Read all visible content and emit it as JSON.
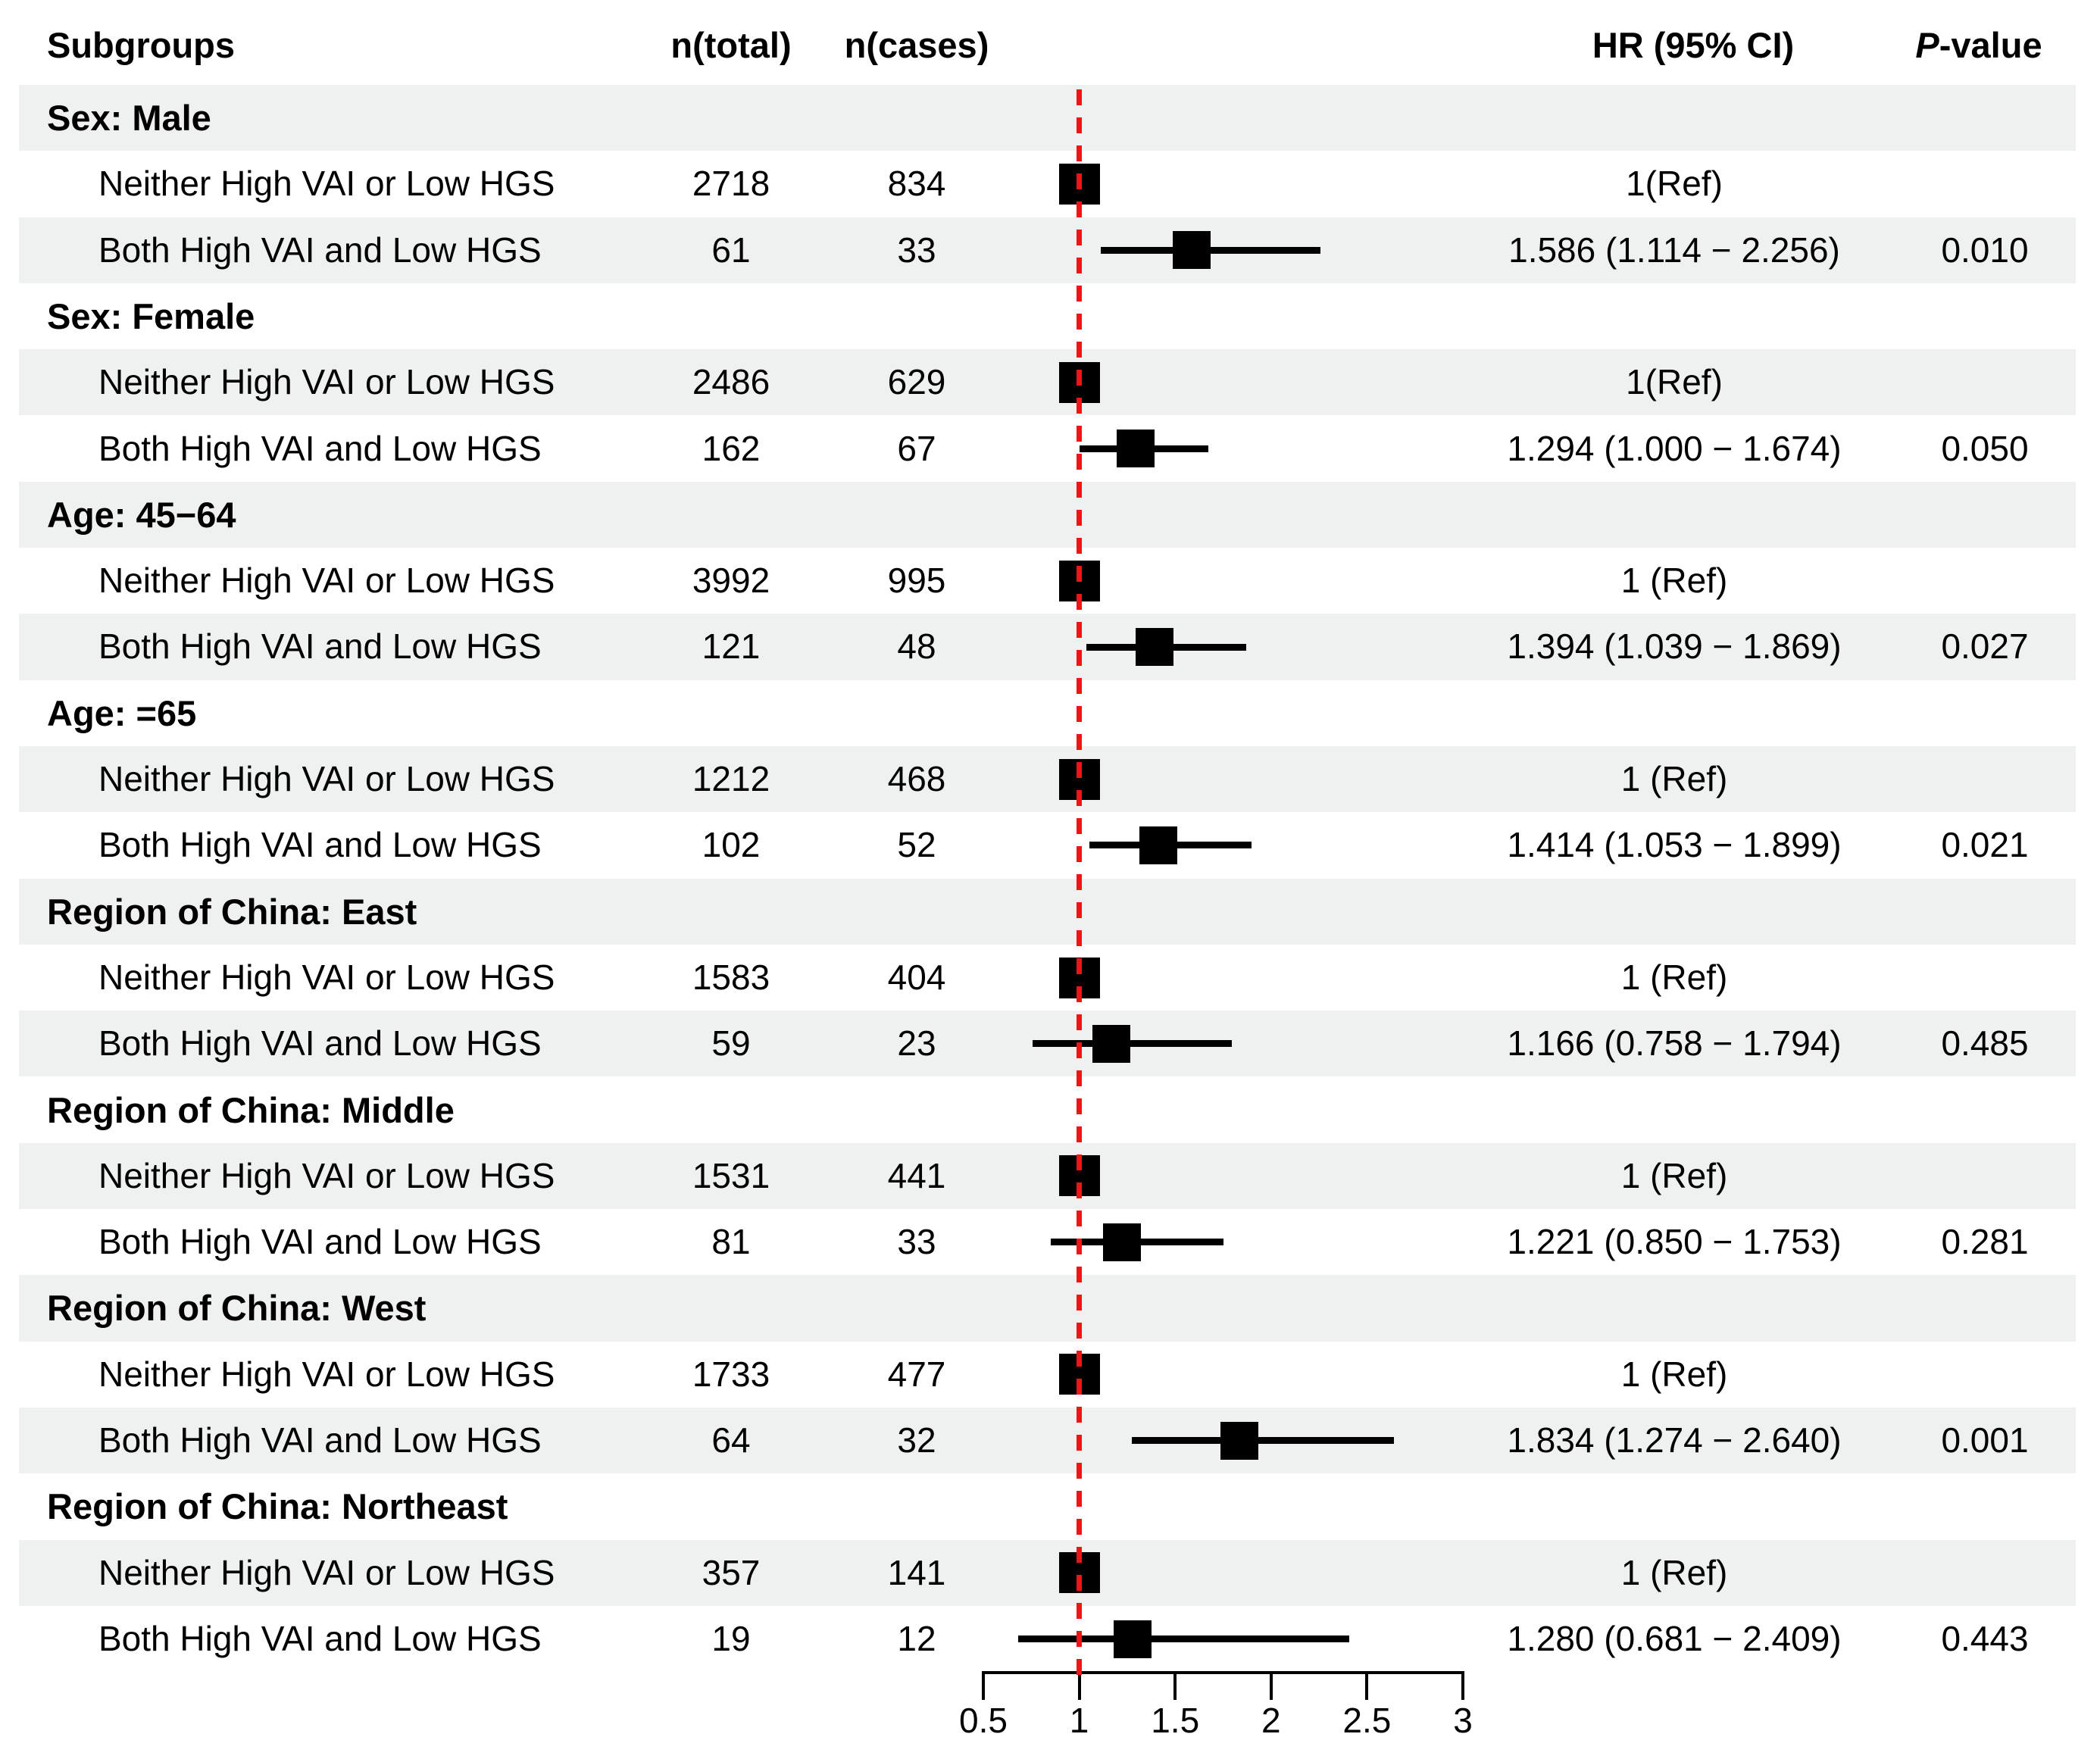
{
  "header": {
    "subgroups": "Subgroups",
    "n_total": "n(total)",
    "n_cases": "n(cases)",
    "hr_ci": "HR (95% CI)",
    "p_italic": "P",
    "p_rest": "-value"
  },
  "colors": {
    "band": "#eef1f0",
    "reference_line": "#f01414",
    "marker": "#000000",
    "text": "#000000"
  },
  "axis": {
    "min": 0.5,
    "max": 3,
    "ref_value": 1,
    "ticks": [
      "0.5",
      "1",
      "1.5",
      "2",
      "2.5",
      "3"
    ]
  },
  "rows": [
    {
      "type": "section",
      "label": "Sex: Male",
      "shaded": true
    },
    {
      "type": "data",
      "label": "Neither High VAI or Low HGS",
      "n_total": "2718",
      "n_cases": "834",
      "hr_text": "1(Ref)",
      "p": "",
      "est": 1,
      "ref": true,
      "shaded": false
    },
    {
      "type": "data",
      "label": "Both High VAI and Low HGS",
      "n_total": "61",
      "n_cases": "33",
      "hr_text": "1.586 (1.114 − 2.256)",
      "p": "0.010",
      "est": 1.586,
      "lo": 1.114,
      "hi": 2.256,
      "ref": false,
      "shaded": true
    },
    {
      "type": "section",
      "label": "Sex: Female",
      "shaded": false
    },
    {
      "type": "data",
      "label": "Neither High VAI or Low HGS",
      "n_total": "2486",
      "n_cases": "629",
      "hr_text": "1(Ref)",
      "p": "",
      "est": 1,
      "ref": true,
      "shaded": true
    },
    {
      "type": "data",
      "label": "Both High VAI and Low HGS",
      "n_total": "162",
      "n_cases": "67",
      "hr_text": "1.294 (1.000 − 1.674)",
      "p": "0.050",
      "est": 1.294,
      "lo": 1.0,
      "hi": 1.674,
      "ref": false,
      "shaded": false
    },
    {
      "type": "section",
      "label": "Age: 45−64",
      "shaded": true
    },
    {
      "type": "data",
      "label": "Neither High VAI or Low HGS",
      "n_total": "3992",
      "n_cases": "995",
      "hr_text": "1 (Ref)",
      "p": "",
      "est": 1,
      "ref": true,
      "shaded": false
    },
    {
      "type": "data",
      "label": "Both High VAI and Low HGS",
      "n_total": "121",
      "n_cases": "48",
      "hr_text": "1.394 (1.039 − 1.869)",
      "p": "0.027",
      "est": 1.394,
      "lo": 1.039,
      "hi": 1.869,
      "ref": false,
      "shaded": true
    },
    {
      "type": "section",
      "label": "Age: =65",
      "shaded": false
    },
    {
      "type": "data",
      "label": "Neither High VAI or Low HGS",
      "n_total": "1212",
      "n_cases": "468",
      "hr_text": "1 (Ref)",
      "p": "",
      "est": 1,
      "ref": true,
      "shaded": true
    },
    {
      "type": "data",
      "label": "Both High VAI and Low HGS",
      "n_total": "102",
      "n_cases": "52",
      "hr_text": "1.414 (1.053 − 1.899)",
      "p": "0.021",
      "est": 1.414,
      "lo": 1.053,
      "hi": 1.899,
      "ref": false,
      "shaded": false
    },
    {
      "type": "section",
      "label": "Region of China: East",
      "shaded": true
    },
    {
      "type": "data",
      "label": "Neither High VAI or Low HGS",
      "n_total": "1583",
      "n_cases": "404",
      "hr_text": "1 (Ref)",
      "p": "",
      "est": 1,
      "ref": true,
      "shaded": false
    },
    {
      "type": "data",
      "label": "Both High VAI and Low HGS",
      "n_total": "59",
      "n_cases": "23",
      "hr_text": "1.166 (0.758 − 1.794)",
      "p": "0.485",
      "est": 1.166,
      "lo": 0.758,
      "hi": 1.794,
      "ref": false,
      "shaded": true
    },
    {
      "type": "section",
      "label": "Region of China: Middle",
      "shaded": false
    },
    {
      "type": "data",
      "label": "Neither High VAI or Low HGS",
      "n_total": "1531",
      "n_cases": "441",
      "hr_text": "1 (Ref)",
      "p": "",
      "est": 1,
      "ref": true,
      "shaded": true
    },
    {
      "type": "data",
      "label": "Both High VAI and Low HGS",
      "n_total": "81",
      "n_cases": "33",
      "hr_text": "1.221 (0.850 − 1.753)",
      "p": "0.281",
      "est": 1.221,
      "lo": 0.85,
      "hi": 1.753,
      "ref": false,
      "shaded": false
    },
    {
      "type": "section",
      "label": "Region of China: West",
      "shaded": true
    },
    {
      "type": "data",
      "label": "Neither High VAI or Low HGS",
      "n_total": "1733",
      "n_cases": "477",
      "hr_text": "1 (Ref)",
      "p": "",
      "est": 1,
      "ref": true,
      "shaded": false
    },
    {
      "type": "data",
      "label": "Both High VAI and Low HGS",
      "n_total": "64",
      "n_cases": "32",
      "hr_text": "1.834 (1.274 − 2.640)",
      "p": "0.001",
      "est": 1.834,
      "lo": 1.274,
      "hi": 2.64,
      "ref": false,
      "shaded": true
    },
    {
      "type": "section",
      "label": "Region of China: Northeast",
      "shaded": false
    },
    {
      "type": "data",
      "label": "Neither High VAI or Low HGS",
      "n_total": "357",
      "n_cases": "141",
      "hr_text": "1 (Ref)",
      "p": "",
      "est": 1,
      "ref": true,
      "shaded": true
    },
    {
      "type": "data",
      "label": "Both High VAI and Low HGS",
      "n_total": "19",
      "n_cases": "12",
      "hr_text": "1.280 (0.681 − 2.409)",
      "p": "0.443",
      "est": 1.28,
      "lo": 0.681,
      "hi": 2.409,
      "ref": false,
      "shaded": false
    }
  ],
  "chart_data": {
    "type": "scatter",
    "subtype": "forest-plot",
    "title": "",
    "xlabel": "",
    "x_ticks": [
      0.5,
      1,
      1.5,
      2,
      2.5,
      3
    ],
    "xlim": [
      0.5,
      3
    ],
    "reference_line_x": 1,
    "columns": [
      "Subgroups",
      "n(total)",
      "n(cases)",
      "HR (95% CI)",
      "P-value"
    ],
    "groups": [
      {
        "subgroup": "Sex: Male",
        "rows": [
          {
            "label": "Neither High VAI or Low HGS",
            "n_total": 2718,
            "n_cases": 834,
            "hr": 1,
            "ref": true
          },
          {
            "label": "Both High VAI and Low HGS",
            "n_total": 61,
            "n_cases": 33,
            "hr": 1.586,
            "ci_low": 1.114,
            "ci_high": 2.256,
            "p": 0.01
          }
        ]
      },
      {
        "subgroup": "Sex: Female",
        "rows": [
          {
            "label": "Neither High VAI or Low HGS",
            "n_total": 2486,
            "n_cases": 629,
            "hr": 1,
            "ref": true
          },
          {
            "label": "Both High VAI and Low HGS",
            "n_total": 162,
            "n_cases": 67,
            "hr": 1.294,
            "ci_low": 1.0,
            "ci_high": 1.674,
            "p": 0.05
          }
        ]
      },
      {
        "subgroup": "Age: 45−64",
        "rows": [
          {
            "label": "Neither High VAI or Low HGS",
            "n_total": 3992,
            "n_cases": 995,
            "hr": 1,
            "ref": true
          },
          {
            "label": "Both High VAI and Low HGS",
            "n_total": 121,
            "n_cases": 48,
            "hr": 1.394,
            "ci_low": 1.039,
            "ci_high": 1.869,
            "p": 0.027
          }
        ]
      },
      {
        "subgroup": "Age: =65",
        "rows": [
          {
            "label": "Neither High VAI or Low HGS",
            "n_total": 1212,
            "n_cases": 468,
            "hr": 1,
            "ref": true
          },
          {
            "label": "Both High VAI and Low HGS",
            "n_total": 102,
            "n_cases": 52,
            "hr": 1.414,
            "ci_low": 1.053,
            "ci_high": 1.899,
            "p": 0.021
          }
        ]
      },
      {
        "subgroup": "Region of China: East",
        "rows": [
          {
            "label": "Neither High VAI or Low HGS",
            "n_total": 1583,
            "n_cases": 404,
            "hr": 1,
            "ref": true
          },
          {
            "label": "Both High VAI and Low HGS",
            "n_total": 59,
            "n_cases": 23,
            "hr": 1.166,
            "ci_low": 0.758,
            "ci_high": 1.794,
            "p": 0.485
          }
        ]
      },
      {
        "subgroup": "Region of China: Middle",
        "rows": [
          {
            "label": "Neither High VAI or Low HGS",
            "n_total": 1531,
            "n_cases": 441,
            "hr": 1,
            "ref": true
          },
          {
            "label": "Both High VAI and Low HGS",
            "n_total": 81,
            "n_cases": 33,
            "hr": 1.221,
            "ci_low": 0.85,
            "ci_high": 1.753,
            "p": 0.281
          }
        ]
      },
      {
        "subgroup": "Region of China: West",
        "rows": [
          {
            "label": "Neither High VAI or Low HGS",
            "n_total": 1733,
            "n_cases": 477,
            "hr": 1,
            "ref": true
          },
          {
            "label": "Both High VAI and Low HGS",
            "n_total": 64,
            "n_cases": 32,
            "hr": 1.834,
            "ci_low": 1.274,
            "ci_high": 2.64,
            "p": 0.001
          }
        ]
      },
      {
        "subgroup": "Region of China: Northeast",
        "rows": [
          {
            "label": "Neither High VAI or Low HGS",
            "n_total": 357,
            "n_cases": 141,
            "hr": 1,
            "ref": true
          },
          {
            "label": "Both High VAI and Low HGS",
            "n_total": 19,
            "n_cases": 12,
            "hr": 1.28,
            "ci_low": 0.681,
            "ci_high": 2.409,
            "p": 0.443
          }
        ]
      }
    ]
  }
}
